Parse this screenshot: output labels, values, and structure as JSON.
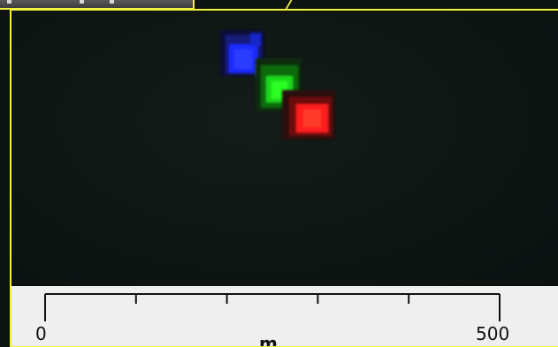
{
  "scale_bar": {
    "start_label": "0",
    "end_label": "500",
    "unit_label": "m",
    "major_ticks": 6
  },
  "colors": {
    "selection_frame": "#f2f23a",
    "image_background": "#0e1513",
    "scale_panel": "#efefef",
    "blue_blob": "#1a2cff",
    "green_blob": "#1fe81a",
    "red_blob": "#ff1a1a"
  },
  "toolbar": {
    "icons": [
      "toolbar-handle-icon",
      "toolbar-handle-icon",
      "toolbar-handle-icon"
    ]
  }
}
